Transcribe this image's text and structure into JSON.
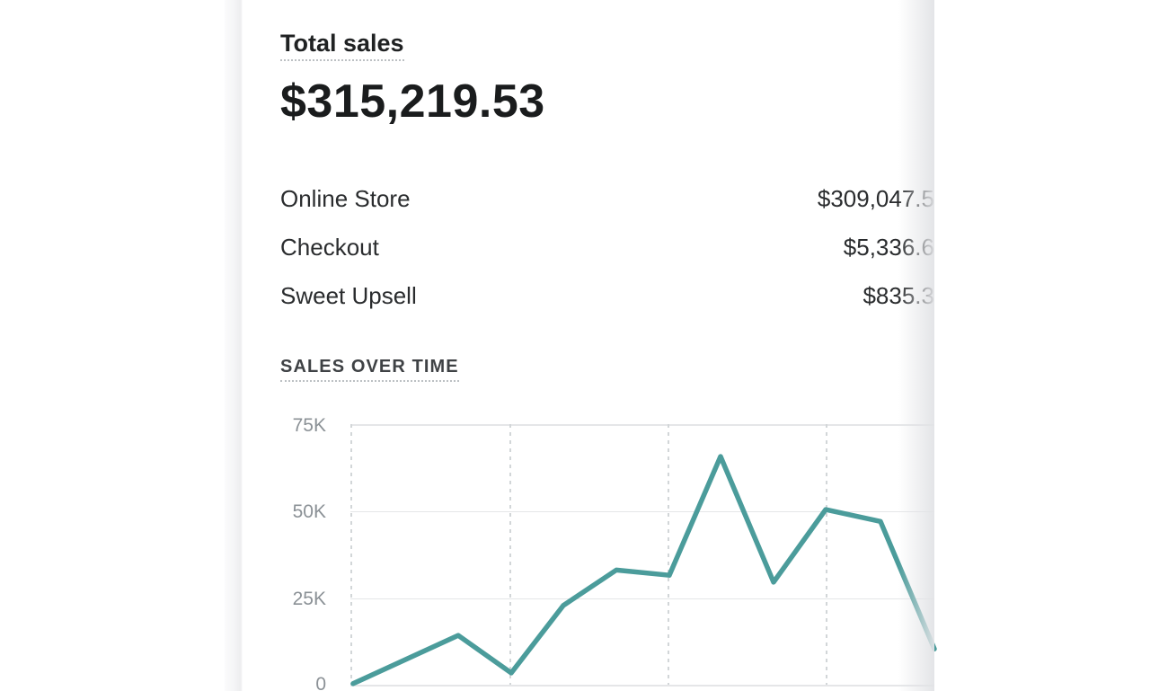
{
  "card": {
    "title": "Total sales",
    "total_amount": "$315,219.53",
    "channels": [
      {
        "label": "Online Store",
        "value": "$309,047.5"
      },
      {
        "label": "Checkout",
        "value": "$5,336.6"
      },
      {
        "label": "Sweet Upsell",
        "value": "$835.3"
      }
    ],
    "section_heading": "SALES OVER TIME"
  },
  "chart_data": {
    "type": "line",
    "title": "Sales over time",
    "series": [
      {
        "name": "Total sales",
        "points": [
          {
            "x": 3,
            "v": 300
          },
          {
            "x": 120,
            "v": 14200
          },
          {
            "x": 179,
            "v": 3400
          },
          {
            "x": 237,
            "v": 22800
          },
          {
            "x": 296,
            "v": 33000
          },
          {
            "x": 355,
            "v": 31500
          },
          {
            "x": 412,
            "v": 65700
          },
          {
            "x": 471,
            "v": 29500
          },
          {
            "x": 529,
            "v": 50400
          },
          {
            "x": 590,
            "v": 47000
          },
          {
            "x": 650,
            "v": 10300
          }
        ]
      }
    ],
    "y_tick_labels": [
      "75K",
      "50K",
      "25K",
      "0"
    ],
    "ylim": [
      0,
      75000
    ],
    "units": "USD",
    "x_axis_labels_visible": false,
    "grid": {
      "horizontal": "solid",
      "vertical": "dashed"
    },
    "legend": "none",
    "line_color": "#4b9c9b"
  },
  "colors": {
    "text": "#202223",
    "subheading": "#3f4245",
    "axis_text": "#8b9196",
    "grid_solid": "#e5e6e8",
    "grid_dashed": "#d2d6d8",
    "line": "#4b9c9b",
    "gutter": "#f4f5f6",
    "background": "#ffffff"
  }
}
